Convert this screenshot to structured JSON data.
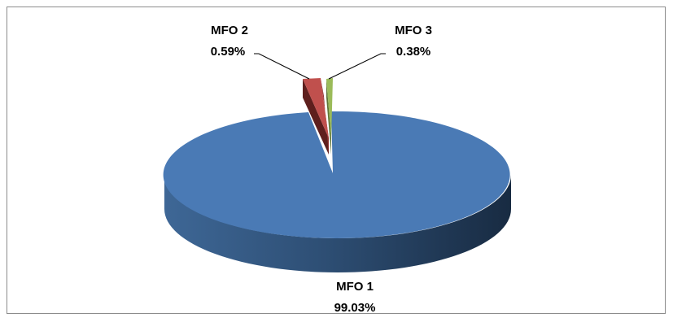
{
  "chart_data": {
    "type": "pie",
    "style": "3d-exploded",
    "title": "",
    "legend": "none",
    "slices": [
      {
        "name": "MFO 1",
        "value": 99.03,
        "label": "99.03%",
        "color": "#4A7AB5"
      },
      {
        "name": "MFO 2",
        "value": 0.59,
        "label": "0.59%",
        "color": "#C0504D"
      },
      {
        "name": "MFO 3",
        "value": 0.38,
        "label": "0.38%",
        "color": "#9BBB59"
      }
    ]
  }
}
